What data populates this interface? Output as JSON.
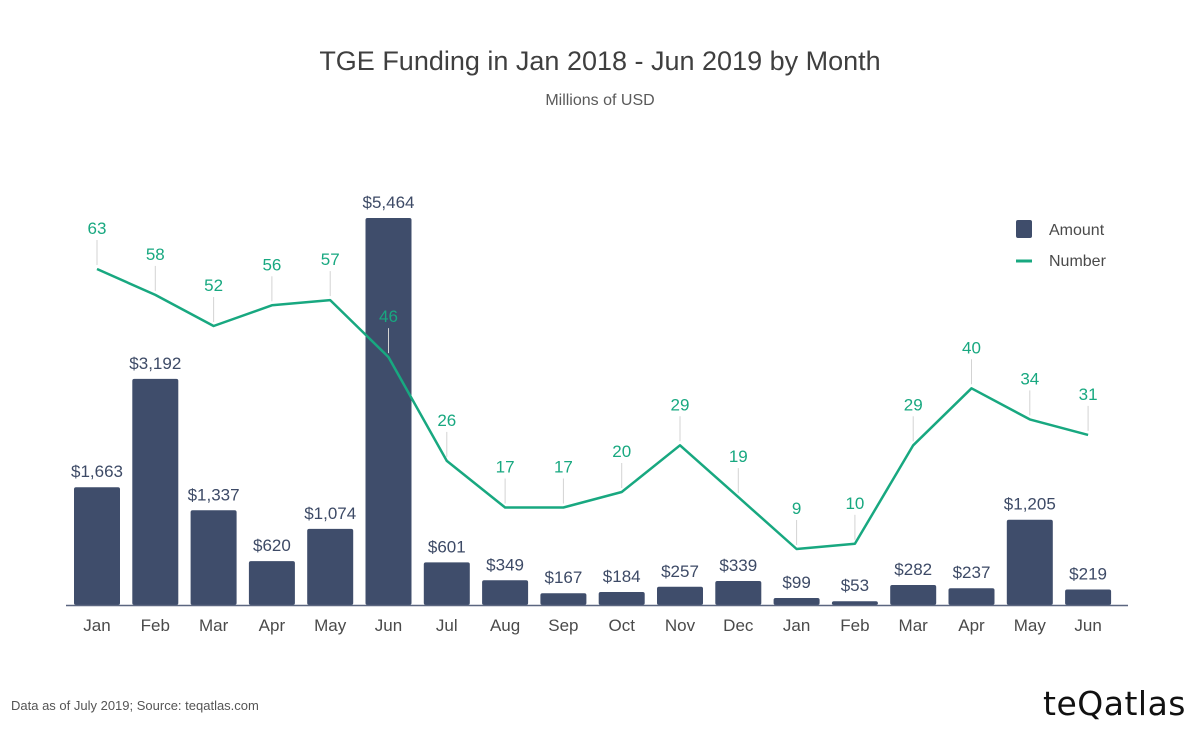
{
  "chart_data": {
    "type": "bar",
    "title": "TGE Funding in Jan 2018 - Jun 2019 by Month",
    "subtitle": "Millions of USD",
    "categories": [
      "Jan",
      "Feb",
      "Mar",
      "Apr",
      "May",
      "Jun",
      "Jul",
      "Aug",
      "Sep",
      "Oct",
      "Nov",
      "Dec",
      "Jan",
      "Feb",
      "Mar",
      "Apr",
      "May",
      "Jun"
    ],
    "series": [
      {
        "name": "Amount",
        "type": "bar",
        "color": "#3f4d6b",
        "values": [
          1663,
          3192,
          1337,
          620,
          1074,
          5464,
          601,
          349,
          167,
          184,
          257,
          339,
          99,
          53,
          282,
          237,
          1205,
          219
        ],
        "labels": [
          "$1,663",
          "$3,192",
          "$1,337",
          "$620",
          "$1,074",
          "$5,464",
          "$601",
          "$349",
          "$167",
          "$184",
          "$257",
          "$339",
          "$99",
          "$53",
          "$282",
          "$237",
          "$1,205",
          "$219"
        ]
      },
      {
        "name": "Number",
        "type": "line",
        "color": "#18a880",
        "values": [
          63,
          58,
          52,
          56,
          57,
          46,
          26,
          17,
          17,
          20,
          29,
          19,
          9,
          10,
          29,
          40,
          34,
          31
        ]
      }
    ],
    "legend_position": "top-right",
    "grid": false
  },
  "footer": {
    "note": "Data as of July 2019; Source: teqatlas.com",
    "brand": "teQatlas"
  }
}
